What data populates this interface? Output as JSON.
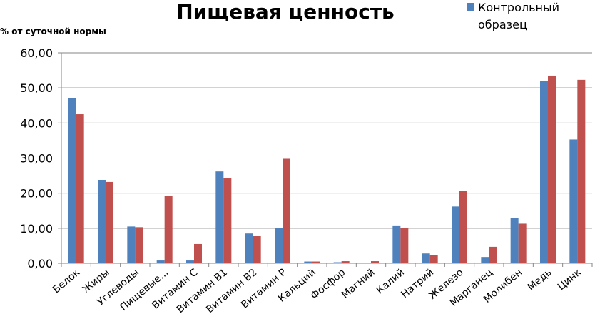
{
  "chart_data": {
    "type": "bar",
    "title": "Пищевая ценность",
    "ylabel": "% от суточной нормы",
    "xlabel": "",
    "ylim": [
      0,
      60
    ],
    "yticks": [
      "0,00",
      "10,00",
      "20,00",
      "30,00",
      "40,00",
      "50,00",
      "60,00"
    ],
    "grid": "horizontal",
    "legend_position": "top-right",
    "categories": [
      "Белок",
      "Жиры",
      "Углеводы",
      "Пищевые...",
      "Витамин С",
      "Витамин В1",
      "Витамин В2",
      "Витамин Р",
      "Кальций",
      "Фосфор",
      "Магний",
      "Калий",
      "Натрий",
      "Железо",
      "Марганец",
      "Молибен",
      "Медь",
      "Цинк"
    ],
    "series": [
      {
        "name": "Контрольный образец",
        "color": "#4f81bd",
        "values": [
          47.1,
          23.8,
          10.5,
          0.8,
          0.8,
          26.2,
          8.5,
          10.0,
          0.5,
          0.3,
          0.2,
          10.8,
          2.8,
          16.2,
          1.8,
          13.0,
          52.0,
          35.3
        ]
      },
      {
        "name": "",
        "color": "#c0504d",
        "values": [
          42.5,
          23.2,
          10.3,
          19.2,
          5.5,
          24.2,
          7.8,
          29.8,
          0.5,
          0.6,
          0.6,
          10.0,
          2.4,
          20.6,
          4.7,
          11.3,
          53.5,
          52.3
        ]
      }
    ]
  }
}
